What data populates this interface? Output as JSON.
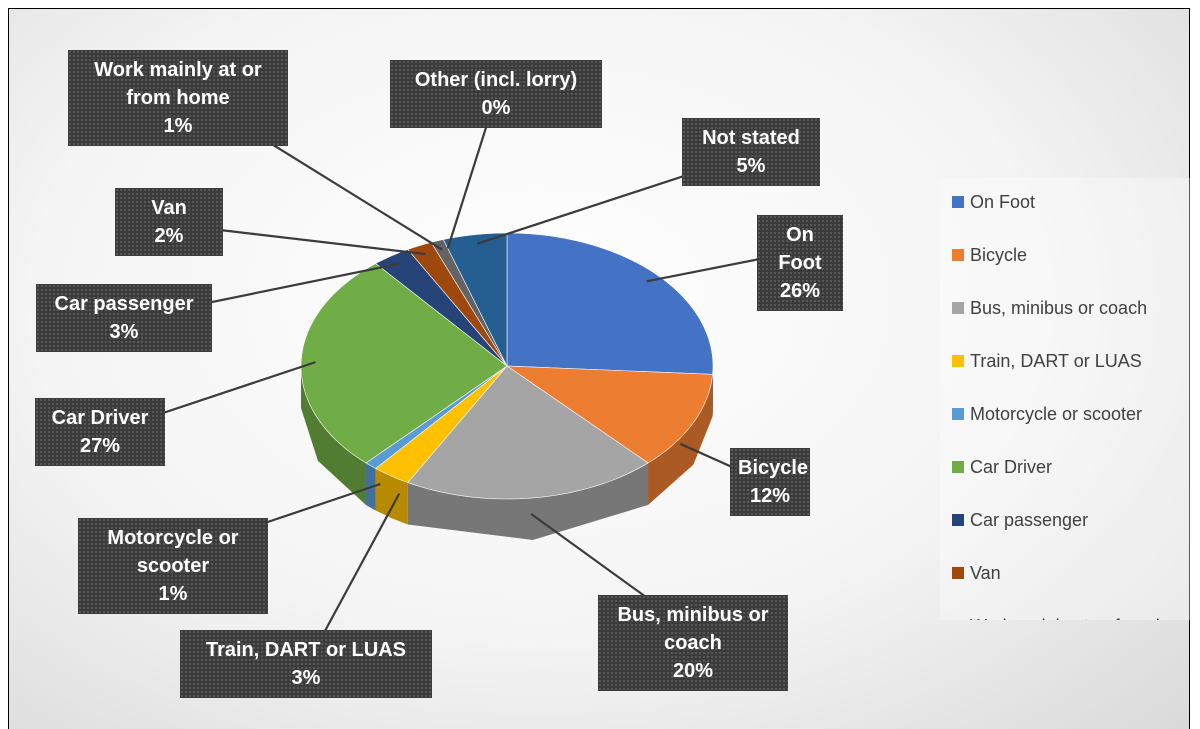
{
  "chart_data": {
    "type": "pie3d",
    "categories": [
      "On Foot",
      "Bicycle",
      "Bus, minibus or coach",
      "Train, DART or LUAS",
      "Motorcycle or scooter",
      "Car Driver",
      "Car passenger",
      "Van",
      "Work mainly at or from home",
      "Other (incl. lorry)",
      "Not stated"
    ],
    "values": [
      26,
      12,
      20,
      3,
      1,
      27,
      3,
      2,
      1,
      0,
      5
    ],
    "value_labels": [
      "26%",
      "12%",
      "20%",
      "3%",
      "1%",
      "27%",
      "3%",
      "2%",
      "1%",
      "0%",
      "5%"
    ],
    "colors": [
      "#4472c4",
      "#ed7d31",
      "#a5a5a5",
      "#ffc000",
      "#5b9bd5",
      "#70ad47",
      "#264478",
      "#9e480e",
      "#636363",
      "#997300",
      "#255e91"
    ],
    "legend": "right"
  }
}
